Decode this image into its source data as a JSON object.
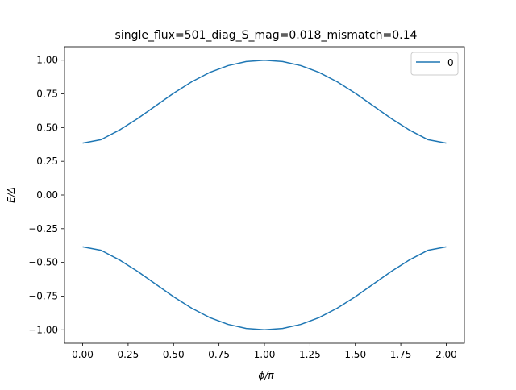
{
  "chart_data": {
    "type": "line",
    "title": "single_flux=501_diag_S_mag=0.018_mismatch=0.14",
    "xlabel": "ϕ/π",
    "ylabel": "E/Δ",
    "xlim": [
      -0.1,
      2.1
    ],
    "ylim": [
      -1.1,
      1.1
    ],
    "x_ticks": [
      0.0,
      0.25,
      0.5,
      0.75,
      1.0,
      1.25,
      1.5,
      1.75,
      2.0
    ],
    "x_tick_labels": [
      "0.00",
      "0.25",
      "0.50",
      "0.75",
      "1.00",
      "1.25",
      "1.50",
      "1.75",
      "2.00"
    ],
    "y_ticks": [
      -1.0,
      -0.75,
      -0.5,
      -0.25,
      0.0,
      0.25,
      0.5,
      0.75,
      1.0
    ],
    "y_tick_labels": [
      "−1.00",
      "−0.75",
      "−0.50",
      "−0.25",
      "0.00",
      "0.25",
      "0.50",
      "0.75",
      "1.00"
    ],
    "grid": false,
    "legend_position": "top-right",
    "line_color": "#1f77b4",
    "x": [
      0.0,
      0.1,
      0.2,
      0.3,
      0.4,
      0.5,
      0.6,
      0.7,
      0.8,
      0.9,
      1.0,
      1.1,
      1.2,
      1.3,
      1.4,
      1.5,
      1.6,
      1.7,
      1.8,
      1.9,
      2.0
    ],
    "series": [
      {
        "name": "0",
        "color": "#1f77b4",
        "values": [
          0.385,
          0.41,
          0.48,
          0.565,
          0.66,
          0.755,
          0.84,
          0.91,
          0.96,
          0.99,
          1.0,
          0.99,
          0.96,
          0.91,
          0.84,
          0.755,
          0.66,
          0.565,
          0.48,
          0.41,
          0.385
        ]
      },
      {
        "color": "#1f77b4",
        "values": [
          -0.385,
          -0.41,
          -0.48,
          -0.565,
          -0.66,
          -0.755,
          -0.84,
          -0.91,
          -0.96,
          -0.99,
          -1.0,
          -0.99,
          -0.96,
          -0.91,
          -0.84,
          -0.755,
          -0.66,
          -0.565,
          -0.48,
          -0.41,
          -0.385
        ]
      }
    ]
  }
}
